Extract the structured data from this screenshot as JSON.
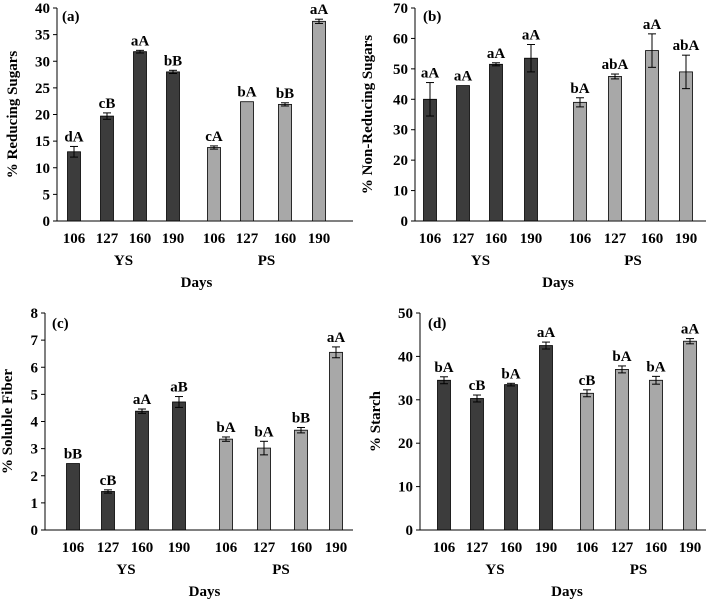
{
  "colors": {
    "ys_bar": "#3c3c3c",
    "ps_bar": "#a8a8a8",
    "axis": "#000000"
  },
  "chart_data": [
    {
      "type": "bar",
      "panel_label": "(a)",
      "ylabel": "% Reducing Sugars",
      "xlabel": "Days",
      "ylim": [
        0,
        40
      ],
      "yticks": [
        "0",
        "5",
        "10",
        "15",
        "20",
        "25",
        "30",
        "35",
        "40"
      ],
      "groups": [
        "YS",
        "PS"
      ],
      "categories": [
        "106",
        "127",
        "160",
        "190"
      ],
      "series": [
        {
          "name": "YS",
          "values": [
            13,
            19.7,
            31.8,
            28
          ],
          "errors": [
            1.0,
            0.6,
            0.25,
            0.3
          ],
          "labels": [
            "dA",
            "cB",
            "aA",
            "bB"
          ]
        },
        {
          "name": "PS",
          "values": [
            13.8,
            22.4,
            21.9,
            37.5
          ],
          "errors": [
            0.3,
            0,
            0.3,
            0.4
          ],
          "labels": [
            "cA",
            "bA",
            "bB",
            "aA"
          ]
        }
      ]
    },
    {
      "type": "bar",
      "panel_label": "(b)",
      "ylabel": "% Non-Reducing Sugars",
      "xlabel": "Days",
      "ylim": [
        0,
        70
      ],
      "yticks": [
        "0",
        "10",
        "20",
        "30",
        "40",
        "50",
        "60",
        "70"
      ],
      "groups": [
        "YS",
        "PS"
      ],
      "categories": [
        "106",
        "127",
        "160",
        "190"
      ],
      "series": [
        {
          "name": "YS",
          "values": [
            40,
            44.5,
            51.5,
            53.5
          ],
          "errors": [
            5.5,
            0,
            0.5,
            4.5
          ],
          "labels": [
            "aA",
            "aA",
            "aA",
            "aA"
          ]
        },
        {
          "name": "PS",
          "values": [
            39,
            47.5,
            56,
            49
          ],
          "errors": [
            1.5,
            0.8,
            5.5,
            5.5
          ],
          "labels": [
            "bA",
            "abA",
            "aA",
            "abA"
          ]
        }
      ]
    },
    {
      "type": "bar",
      "panel_label": "(c)",
      "ylabel": "% Soluble Fiber",
      "xlabel": "Days",
      "ylim": [
        0,
        8
      ],
      "yticks": [
        "0",
        "1",
        "2",
        "3",
        "4",
        "5",
        "6",
        "7",
        "8"
      ],
      "groups": [
        "YS",
        "PS"
      ],
      "categories": [
        "106",
        "127",
        "160",
        "190"
      ],
      "series": [
        {
          "name": "YS",
          "values": [
            2.45,
            1.42,
            4.38,
            4.72
          ],
          "errors": [
            0,
            0.06,
            0.08,
            0.2
          ],
          "labels": [
            "bB",
            "cB",
            "aA",
            "aB"
          ]
        },
        {
          "name": "PS",
          "values": [
            3.35,
            3.02,
            3.68,
            6.55
          ],
          "errors": [
            0.08,
            0.25,
            0.1,
            0.2
          ],
          "labels": [
            "bA",
            "bA",
            "bB",
            "aA"
          ]
        }
      ]
    },
    {
      "type": "bar",
      "panel_label": "(d)",
      "ylabel": "% Starch",
      "xlabel": "Days",
      "ylim": [
        0,
        50
      ],
      "yticks": [
        "0",
        "10",
        "20",
        "30",
        "40",
        "50"
      ],
      "groups": [
        "YS",
        "PS"
      ],
      "categories": [
        "106",
        "127",
        "160",
        "190"
      ],
      "series": [
        {
          "name": "YS",
          "values": [
            34.5,
            30.3,
            33.5,
            42.5
          ],
          "errors": [
            0.8,
            0.8,
            0.3,
            0.8
          ],
          "labels": [
            "bA",
            "cB",
            "bA",
            "aA"
          ]
        },
        {
          "name": "PS",
          "values": [
            31.5,
            37,
            34.5,
            43.5
          ],
          "errors": [
            0.8,
            0.8,
            0.9,
            0.6
          ],
          "labels": [
            "cB",
            "bA",
            "bA",
            "aA"
          ]
        }
      ]
    }
  ]
}
